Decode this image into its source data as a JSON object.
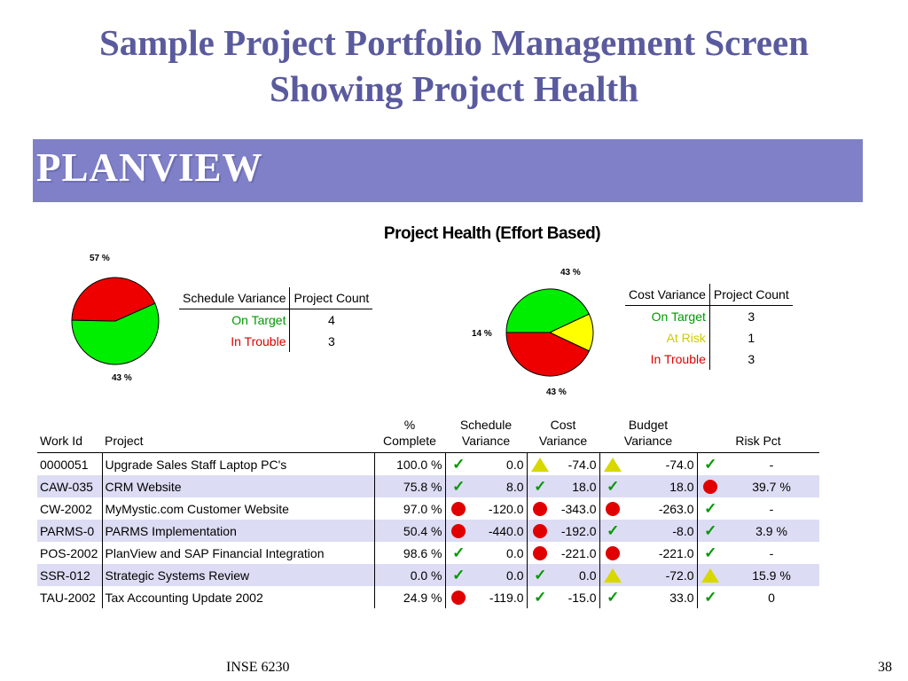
{
  "slide": {
    "title_line1": "Sample Project Portfolio Management Screen",
    "title_line2": "Showing Project Health",
    "footer_left": "INSE 6230",
    "footer_right": "38"
  },
  "banner": {
    "logo": "PLANVIEW"
  },
  "health": {
    "title": "Project Health (Effort Based)"
  },
  "schedule_pie": {
    "label_green": "57 %",
    "label_red": "43 %",
    "slices": [
      {
        "name": "On Target",
        "percent": 57,
        "color": "#00ee00"
      },
      {
        "name": "In Trouble",
        "percent": 43,
        "color": "#ee0000"
      }
    ]
  },
  "cost_pie": {
    "label_green": "43 %",
    "label_yellow": "14 %",
    "label_red": "43 %",
    "slices": [
      {
        "name": "On Target",
        "percent": 43,
        "color": "#00ee00"
      },
      {
        "name": "At Risk",
        "percent": 14,
        "color": "#ffff00"
      },
      {
        "name": "In Trouble",
        "percent": 43,
        "color": "#ee0000"
      }
    ]
  },
  "schedule_table": {
    "col1": "Schedule Variance",
    "col2": "Project Count",
    "rows": [
      {
        "label": "On Target",
        "count": "4",
        "color": "#009900"
      },
      {
        "label": "In Trouble",
        "count": "3",
        "color": "#dd0000"
      }
    ]
  },
  "cost_table": {
    "col1": "Cost Variance",
    "col2": "Project Count",
    "rows": [
      {
        "label": "On Target",
        "count": "3",
        "color": "#009900"
      },
      {
        "label": "At Risk",
        "count": "1",
        "color": "#cccc00"
      },
      {
        "label": "In Trouble",
        "count": "3",
        "color": "#dd0000"
      }
    ]
  },
  "projects": {
    "headers": {
      "work_id": "Work Id",
      "project": "Project",
      "complete_l1": "%",
      "complete_l2": "Complete",
      "schedule_l1": "Schedule",
      "schedule_l2": "Variance",
      "cost_l1": "Cost",
      "cost_l2": "Variance",
      "budget_l1": "Budget",
      "budget_l2": "Variance",
      "risk": "Risk Pct"
    },
    "rows": [
      {
        "id": "0000051",
        "name": "Upgrade Sales Staff Laptop PC's",
        "complete": "100.0 %",
        "sched_ind": "green",
        "sched": "0.0",
        "cost_ind": "yellow",
        "cost": "-74.0",
        "budget_ind": "yellow",
        "budget": "-74.0",
        "risk_ind": "green",
        "risk": "-"
      },
      {
        "id": "CAW-035",
        "name": "CRM Website",
        "complete": "75.8 %",
        "sched_ind": "green",
        "sched": "8.0",
        "cost_ind": "green",
        "cost": "18.0",
        "budget_ind": "green",
        "budget": "18.0",
        "risk_ind": "red",
        "risk": "39.7 %"
      },
      {
        "id": "CW-2002",
        "name": "MyMystic.com Customer Website",
        "complete": "97.0 %",
        "sched_ind": "red",
        "sched": "-120.0",
        "cost_ind": "red",
        "cost": "-343.0",
        "budget_ind": "red",
        "budget": "-263.0",
        "risk_ind": "green",
        "risk": "-"
      },
      {
        "id": "PARMS-0",
        "name": "PARMS Implementation",
        "complete": "50.4 %",
        "sched_ind": "red",
        "sched": "-440.0",
        "cost_ind": "red",
        "cost": "-192.0",
        "budget_ind": "green",
        "budget": "-8.0",
        "risk_ind": "green",
        "risk": "3.9 %"
      },
      {
        "id": "POS-2002",
        "name": "PlanView and SAP Financial Integration",
        "complete": "98.6 %",
        "sched_ind": "green",
        "sched": "0.0",
        "cost_ind": "red",
        "cost": "-221.0",
        "budget_ind": "red",
        "budget": "-221.0",
        "risk_ind": "green",
        "risk": "-"
      },
      {
        "id": "SSR-012",
        "name": "Strategic Systems Review",
        "complete": "0.0 %",
        "sched_ind": "green",
        "sched": "0.0",
        "cost_ind": "green",
        "cost": "0.0",
        "budget_ind": "yellow",
        "budget": "-72.0",
        "risk_ind": "yellow",
        "risk": "15.9 %"
      },
      {
        "id": "TAU-2002",
        "name": "Tax Accounting Update 2002",
        "complete": "24.9 %",
        "sched_ind": "red",
        "sched": "-119.0",
        "cost_ind": "green",
        "cost": "-15.0",
        "budget_ind": "green",
        "budget": "33.0",
        "risk_ind": "green",
        "risk": "0"
      }
    ]
  }
}
